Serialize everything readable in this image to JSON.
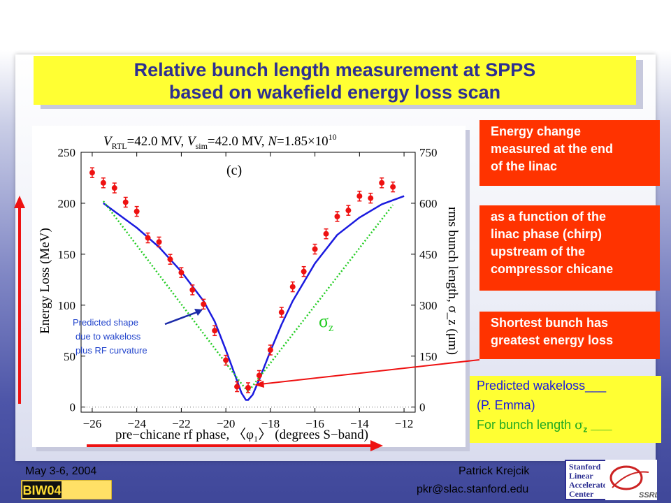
{
  "slide": {
    "title_line1": "Relative bunch length measurement at SPPS",
    "title_line2": "based on wakefield energy loss scan"
  },
  "callouts": {
    "energy_change": [
      "Energy change",
      "measured at the end",
      "of the linac"
    ],
    "function_of_phase": [
      "as a function of the",
      "linac phase (chirp)",
      "upstream of the",
      "compressor chicane"
    ],
    "shortest_bunch": [
      "Shortest bunch has",
      "greatest energy loss"
    ]
  },
  "legend_box": {
    "line1": "Predicted wakeloss___",
    "line2": "(P. Emma)",
    "line3_prefix": "For bunch length",
    "line3_sigma": "σ",
    "line3_sub": "z",
    "line3_suffix": "___"
  },
  "annotation": [
    "Predicted shape",
    "due to wakeloss",
    "plus RF curvature"
  ],
  "footer": {
    "date": "May 3-6, 2004",
    "name": "Patrick Krejcik",
    "email": "pkr@slac.stanford.edu",
    "biw_logo": "BIW04",
    "slac_logo": [
      "Stanford",
      "Linear",
      "Accelerator",
      "Center"
    ],
    "ssrl_logo": "SSRL"
  },
  "colors": {
    "title_bg": "#ffff33",
    "title_text": "#2d2f92",
    "callout_bg": "#ff3300",
    "data_points": "#ee1111",
    "wakeloss_curve": "#1a1adf",
    "sigma_curve": "#22cc22",
    "arrow_red": "#ee1111",
    "annotation_text": "#2244cc"
  },
  "chart_data": {
    "type": "scatter",
    "title": "V_RTL=42.0 MV, V_sim=42.0 MV, N=1.85×10^10",
    "title_parts": {
      "v1": "V",
      "v1_sub": "RTL",
      "eq1": "=42.0 MV, ",
      "v2": "V",
      "v2_sub": "sim",
      "eq2": "=42.0 MV, ",
      "n": "N",
      "eq3": "=1.85×10",
      "exp": "10"
    },
    "panel_label": "(c)",
    "xlabel": "pre−chicane rf phase, 〈φ₁〉 (degrees S−band)",
    "ylabel": "Energy Loss (MeV)",
    "y2label": "rms bunch length, σ_z (μm)",
    "xlim": [
      -26.5,
      -11.5
    ],
    "ylim": [
      -5,
      250
    ],
    "y2lim": [
      -15,
      750
    ],
    "xticks": [
      -26,
      -24,
      -22,
      -20,
      -18,
      -16,
      -14,
      -12
    ],
    "yticks": [
      0,
      50,
      100,
      150,
      200,
      250
    ],
    "y2ticks": [
      0,
      150,
      300,
      450,
      600,
      750
    ],
    "series": [
      {
        "name": "measured",
        "style": "points",
        "x": [
          -26.0,
          -25.5,
          -25.0,
          -24.5,
          -24.0,
          -23.5,
          -23.0,
          -22.5,
          -22.0,
          -21.5,
          -21.0,
          -20.5,
          -20.0,
          -19.5,
          -19.0,
          -18.5,
          -18.0,
          -17.5,
          -17.0,
          -16.5,
          -16.0,
          -15.5,
          -15.0,
          -14.5,
          -14.0,
          -13.5,
          -13.0,
          -12.5
        ],
        "y": [
          230,
          220,
          215,
          201,
          192,
          166,
          162,
          145,
          132,
          115,
          101,
          75,
          46,
          20,
          19,
          31,
          56,
          93,
          118,
          133,
          155,
          170,
          187,
          193,
          207,
          205,
          220,
          216
        ]
      },
      {
        "name": "predicted wakeloss",
        "style": "solid",
        "x": [
          -25.5,
          -25,
          -24,
          -23,
          -22,
          -21,
          -20.5,
          -20,
          -19.6,
          -19.3,
          -19.1,
          -19.0,
          -18.8,
          -18.5,
          -18,
          -17.5,
          -17,
          -16,
          -15,
          -14,
          -13,
          -12
        ],
        "y": [
          200,
          192,
          176,
          157,
          133,
          104,
          84,
          56,
          32,
          14,
          7,
          7,
          12,
          27,
          55,
          81,
          104,
          141,
          169,
          186,
          199,
          207
        ]
      },
      {
        "name": "σz",
        "style": "dotted",
        "axis": "right",
        "x": [
          -25.5,
          -19.3,
          -19.0,
          -12.5
        ],
        "y": [
          606,
          69,
          45,
          595
        ]
      }
    ],
    "sigma_label": "σz"
  }
}
